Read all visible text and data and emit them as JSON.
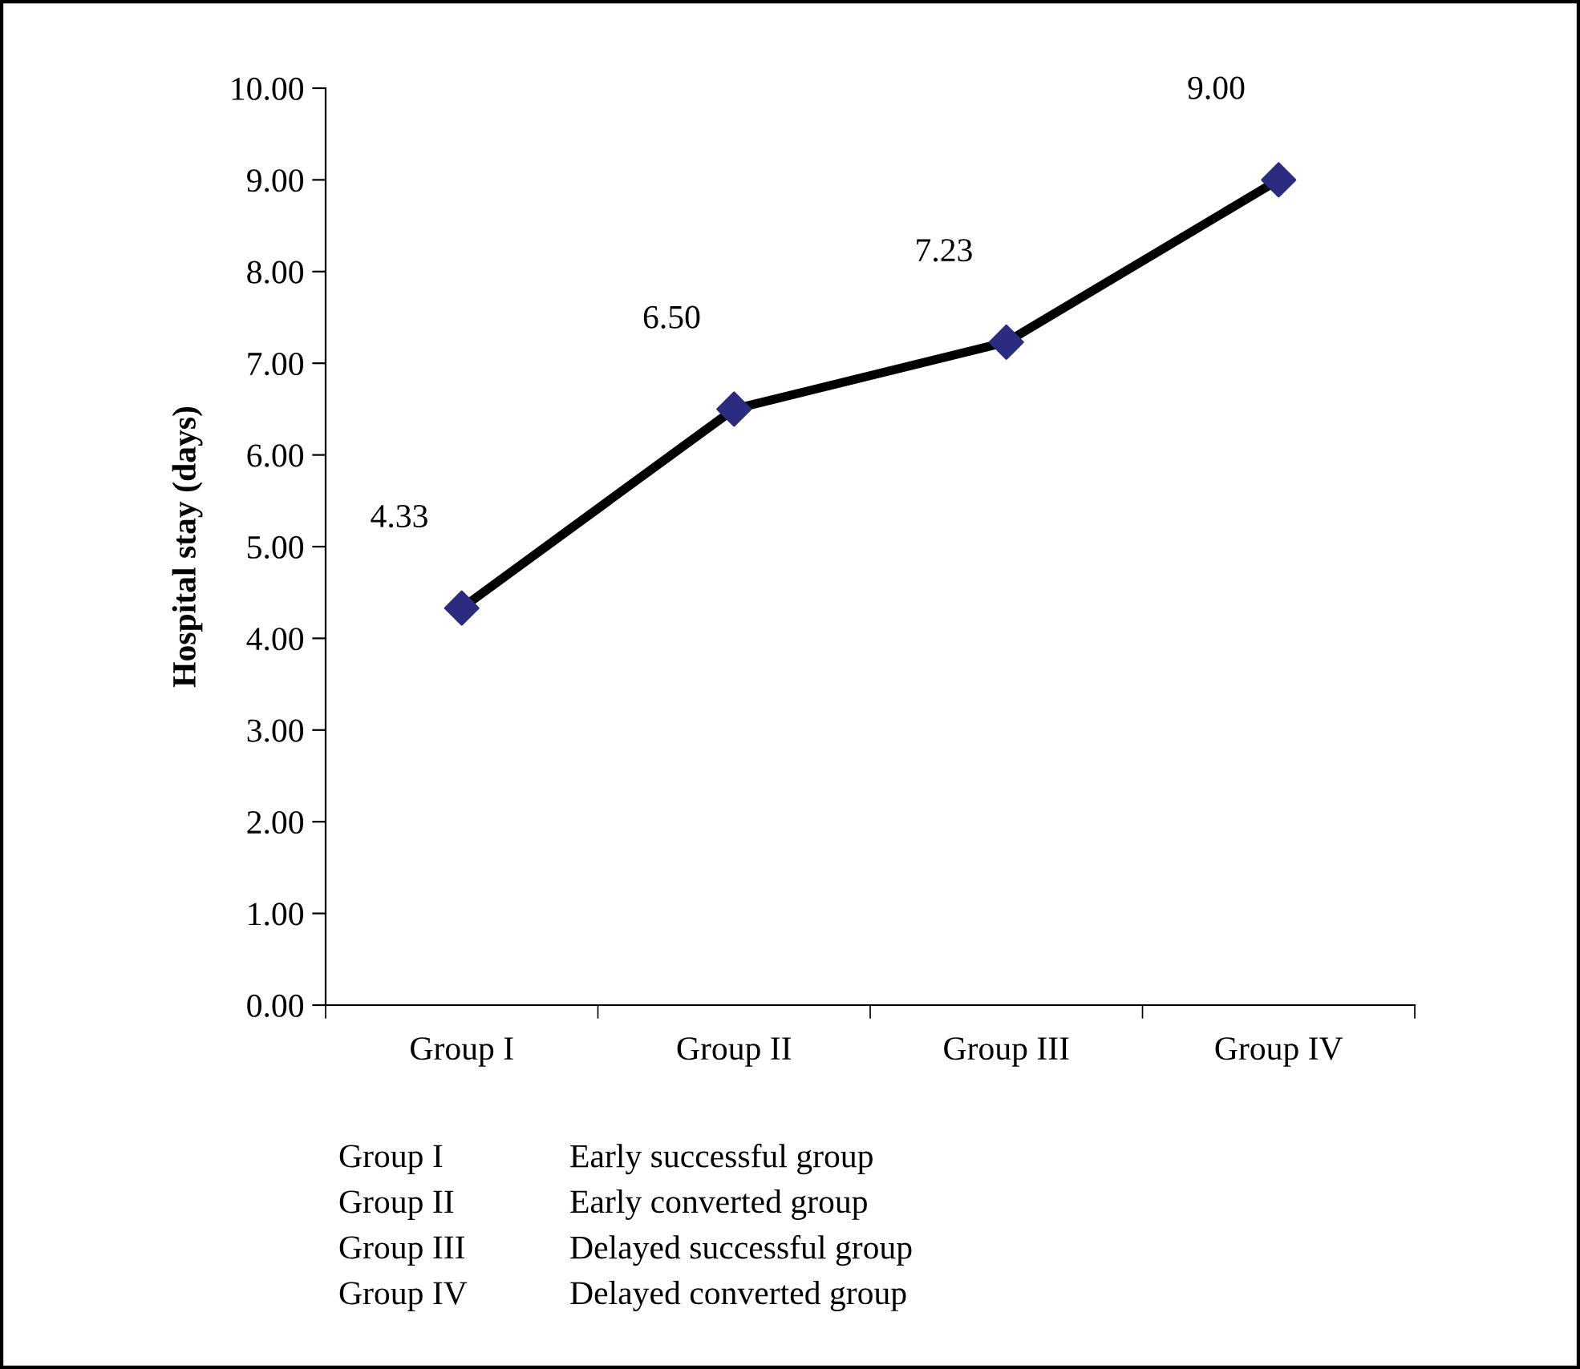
{
  "chart_data": {
    "type": "line",
    "ylabel": "Hospital stay (days)",
    "categories": [
      "Group I",
      "Group II",
      "Group III",
      "Group IV"
    ],
    "series": [
      {
        "color": "#000000",
        "colors": [
          "#2b2b80",
          "#2b2b80",
          "#2b2b80",
          "#2b2b80"
        ],
        "values": [
          4.33,
          6.5,
          7.23,
          9.0
        ],
        "value_labels": [
          "4.33",
          "6.50",
          "7.23",
          "9.00"
        ]
      }
    ],
    "ylim": [
      0,
      10
    ],
    "yticks": [
      {
        "value": 0,
        "label": "0.00"
      },
      {
        "value": 1,
        "label": "1.00"
      },
      {
        "value": 2,
        "label": "2.00"
      },
      {
        "value": 3,
        "label": "3.00"
      },
      {
        "value": 4,
        "label": "4.00"
      },
      {
        "value": 5,
        "label": "5.00"
      },
      {
        "value": 6,
        "label": "6.00"
      },
      {
        "value": 7,
        "label": "7.00"
      },
      {
        "value": 8,
        "label": "8.00"
      },
      {
        "value": 9,
        "label": "9.00"
      },
      {
        "value": 10,
        "label": "10.00"
      }
    ],
    "grid": false,
    "legend": false,
    "marker": "diamond",
    "line_style": "solid",
    "annotations": [
      "Group I",
      "Early successful group",
      "Group II",
      "Early converted group",
      "Group III",
      "Delayed successful group",
      "Group IV",
      "Delayed converted group"
    ]
  }
}
